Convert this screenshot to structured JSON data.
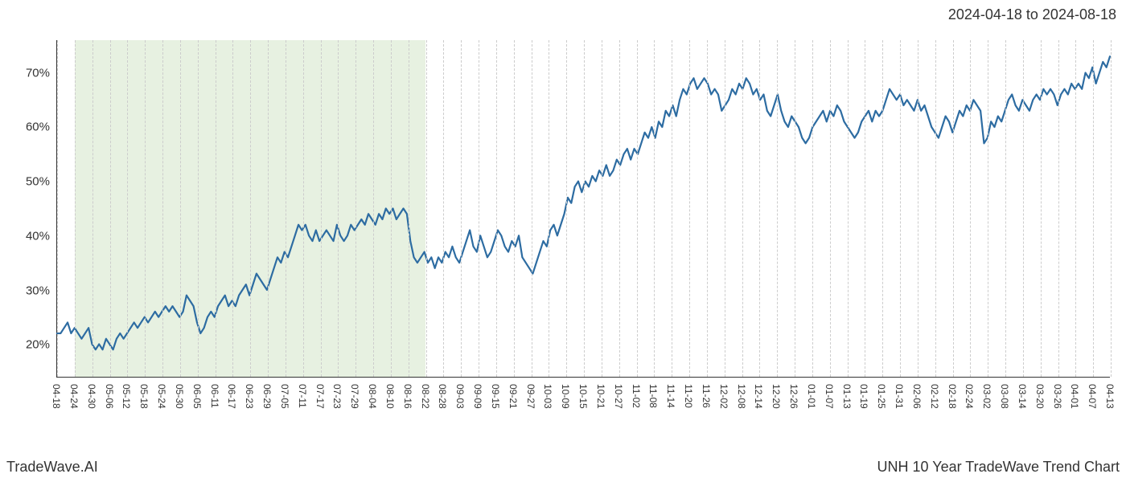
{
  "header": {
    "date_range": "2024-04-18 to 2024-08-18"
  },
  "footer": {
    "left": "TradeWave.AI",
    "right": "UNH 10 Year TradeWave Trend Chart"
  },
  "chart": {
    "type": "line",
    "background_color": "#ffffff",
    "grid_color": "#cccccc",
    "grid_style": "dashed",
    "line_color": "#2d6ca2",
    "line_width": 2.2,
    "highlight_fill": "#d4e6c8",
    "highlight_opacity": 0.55,
    "y_axis": {
      "min": 14,
      "max": 76,
      "ticks": [
        20,
        30,
        40,
        50,
        60,
        70
      ],
      "tick_suffix": "%",
      "label_fontsize": 15
    },
    "x_axis": {
      "labels": [
        "04-18",
        "04-24",
        "04-30",
        "05-06",
        "05-12",
        "05-18",
        "05-24",
        "05-30",
        "06-05",
        "06-11",
        "06-17",
        "06-23",
        "06-29",
        "07-05",
        "07-11",
        "07-17",
        "07-23",
        "07-29",
        "08-04",
        "08-10",
        "08-16",
        "08-22",
        "08-28",
        "09-03",
        "09-09",
        "09-15",
        "09-21",
        "09-27",
        "10-03",
        "10-09",
        "10-15",
        "10-21",
        "10-27",
        "11-02",
        "11-08",
        "11-14",
        "11-20",
        "11-26",
        "12-02",
        "12-08",
        "12-14",
        "12-20",
        "12-26",
        "01-01",
        "01-07",
        "01-13",
        "01-19",
        "01-25",
        "01-31",
        "02-06",
        "02-12",
        "02-18",
        "02-24",
        "03-02",
        "03-08",
        "03-14",
        "03-20",
        "03-26",
        "04-01",
        "04-07",
        "04-13"
      ],
      "label_fontsize": 12,
      "label_rotation": 90
    },
    "highlight_region": {
      "start_index": 1,
      "end_index": 21
    },
    "series": {
      "values": [
        22,
        22,
        23,
        24,
        22,
        23,
        22,
        21,
        22,
        23,
        20,
        19,
        20,
        19,
        21,
        20,
        19,
        21,
        22,
        21,
        22,
        23,
        24,
        23,
        24,
        25,
        24,
        25,
        26,
        25,
        26,
        27,
        26,
        27,
        26,
        25,
        26,
        29,
        28,
        27,
        24,
        22,
        23,
        25,
        26,
        25,
        27,
        28,
        29,
        27,
        28,
        27,
        29,
        30,
        31,
        29,
        31,
        33,
        32,
        31,
        30,
        32,
        34,
        36,
        35,
        37,
        36,
        38,
        40,
        42,
        41,
        42,
        40,
        39,
        41,
        39,
        40,
        41,
        40,
        39,
        42,
        40,
        39,
        40,
        42,
        41,
        42,
        43,
        42,
        44,
        43,
        42,
        44,
        43,
        45,
        44,
        45,
        43,
        44,
        45,
        44,
        39,
        36,
        35,
        36,
        37,
        35,
        36,
        34,
        36,
        35,
        37,
        36,
        38,
        36,
        35,
        37,
        39,
        41,
        38,
        37,
        40,
        38,
        36,
        37,
        39,
        41,
        40,
        38,
        37,
        39,
        38,
        40,
        36,
        35,
        34,
        33,
        35,
        37,
        39,
        38,
        41,
        42,
        40,
        42,
        44,
        47,
        46,
        49,
        50,
        48,
        50,
        49,
        51,
        50,
        52,
        51,
        53,
        51,
        52,
        54,
        53,
        55,
        56,
        54,
        56,
        55,
        57,
        59,
        58,
        60,
        58,
        61,
        60,
        63,
        62,
        64,
        62,
        65,
        67,
        66,
        68,
        69,
        67,
        68,
        69,
        68,
        66,
        67,
        66,
        63,
        64,
        65,
        67,
        66,
        68,
        67,
        69,
        68,
        66,
        67,
        65,
        66,
        63,
        62,
        64,
        66,
        63,
        61,
        60,
        62,
        61,
        60,
        58,
        57,
        58,
        60,
        61,
        62,
        63,
        61,
        63,
        62,
        64,
        63,
        61,
        60,
        59,
        58,
        59,
        61,
        62,
        63,
        61,
        63,
        62,
        63,
        65,
        67,
        66,
        65,
        66,
        64,
        65,
        64,
        63,
        65,
        63,
        64,
        62,
        60,
        59,
        58,
        60,
        62,
        61,
        59,
        61,
        63,
        62,
        64,
        63,
        65,
        64,
        63,
        57,
        58,
        61,
        60,
        62,
        61,
        63,
        65,
        66,
        64,
        63,
        65,
        64,
        63,
        65,
        66,
        65,
        67,
        66,
        67,
        66,
        64,
        66,
        67,
        66,
        68,
        67,
        68,
        67,
        70,
        69,
        71,
        68,
        70,
        72,
        71,
        73
      ]
    }
  }
}
